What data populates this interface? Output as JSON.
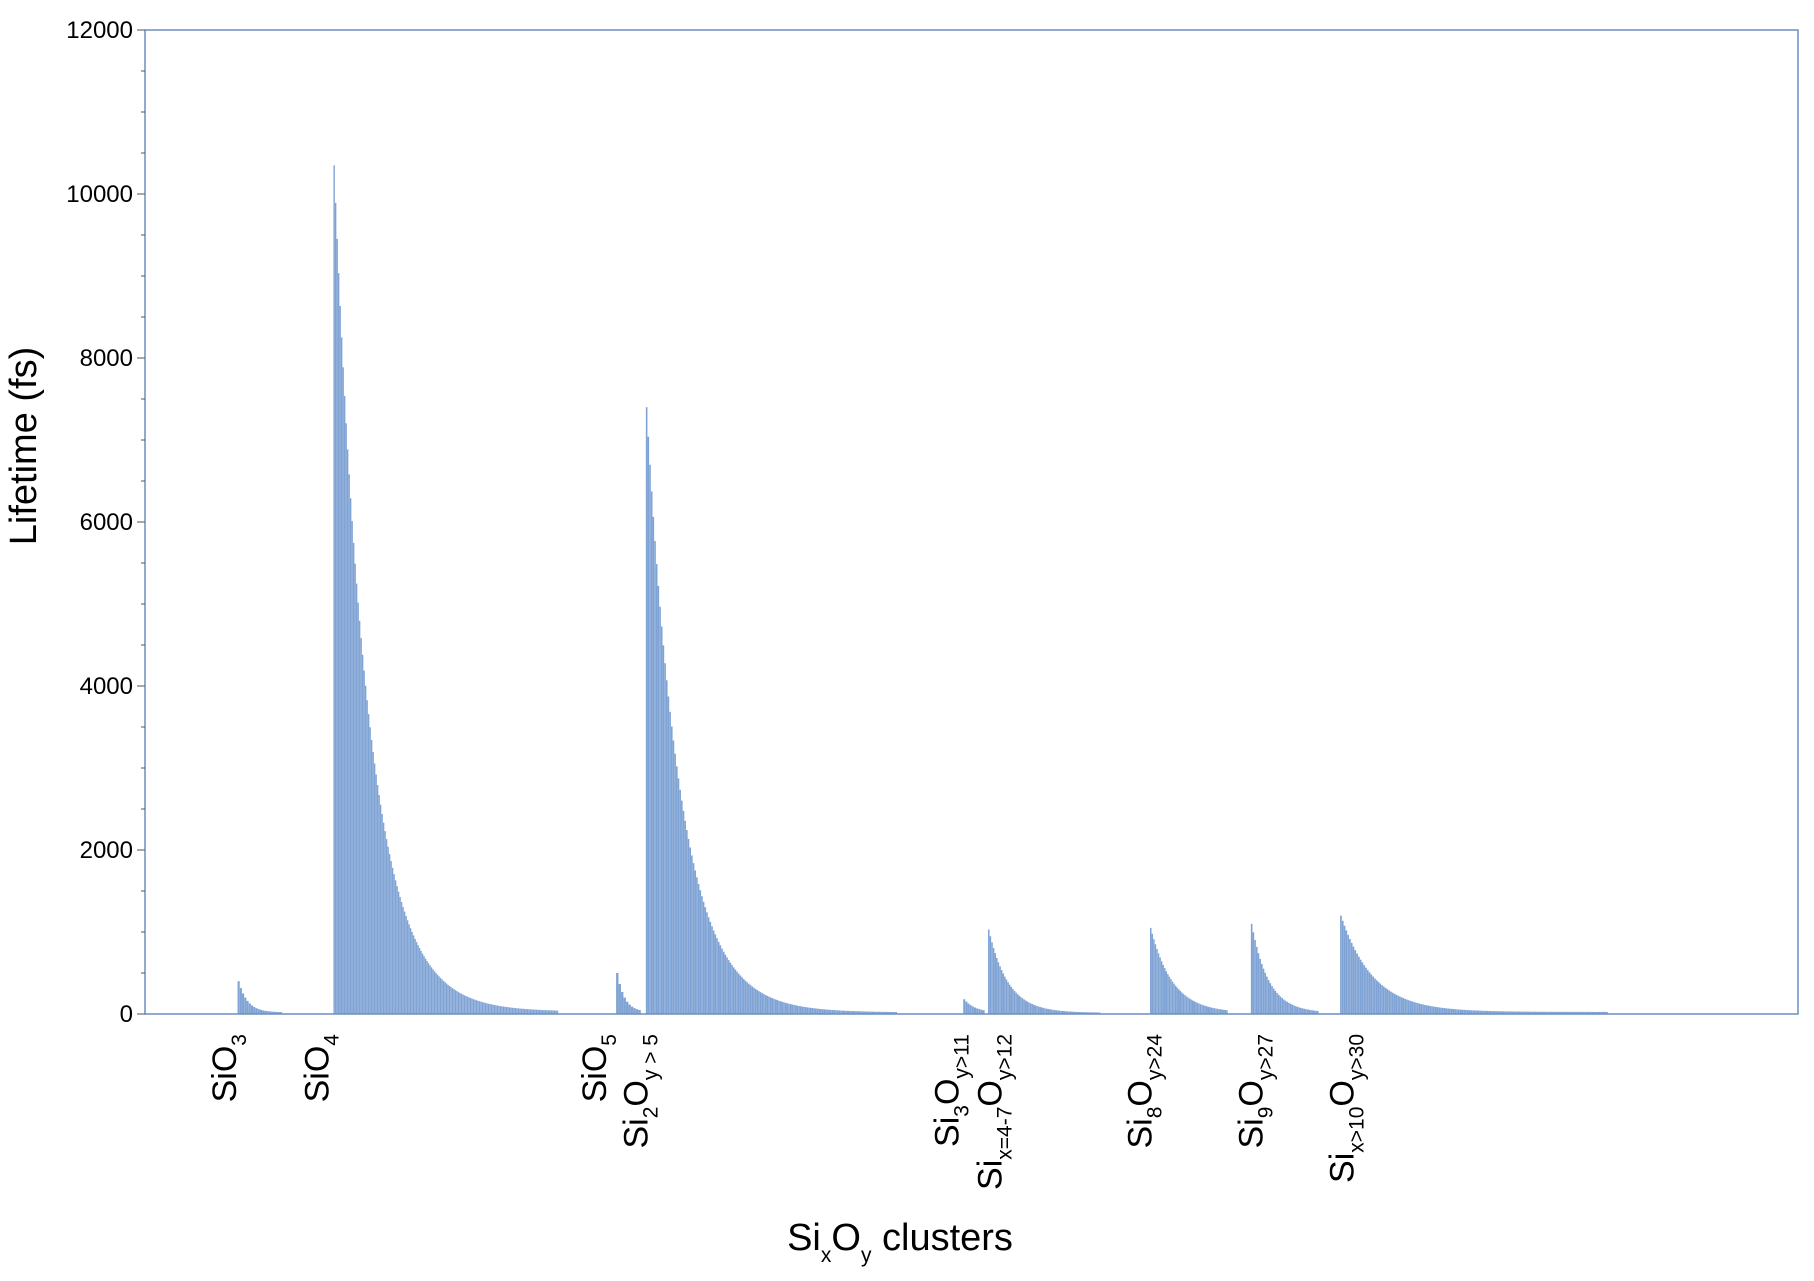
{
  "chart_data": {
    "type": "bar",
    "ylabel": "Lifetime (fs)",
    "xlabel": {
      "base1": "Si",
      "sub1": "x",
      "base2": "O",
      "sub2": "y",
      "rest": " clusters"
    },
    "ylim": [
      0,
      12000
    ],
    "yticks": [
      0,
      2000,
      4000,
      6000,
      8000,
      10000,
      12000
    ],
    "grid": false,
    "colors": {
      "bar": "#7fa3d4",
      "frame": "#6b8fbf"
    },
    "x_category_range": [
      0,
      100
    ],
    "categories": [
      {
        "parts": [
          {
            "t": "SiO"
          },
          {
            "t": "3",
            "sub": true
          }
        ],
        "x": 5.5
      },
      {
        "parts": [
          {
            "t": "SiO"
          },
          {
            "t": "4",
            "sub": true
          }
        ],
        "x": 11.1
      },
      {
        "parts": [
          {
            "t": "SiO"
          },
          {
            "t": "5",
            "sub": true
          }
        ],
        "x": 27.9
      },
      {
        "parts": [
          {
            "t": "Si"
          },
          {
            "t": "2",
            "sub": true
          },
          {
            "t": "O"
          },
          {
            "t": "y > 5",
            "sub": true
          }
        ],
        "x": 30.4
      },
      {
        "parts": [
          {
            "t": "Si"
          },
          {
            "t": "3",
            "sub": true
          },
          {
            "t": "O"
          },
          {
            "t": "y>11",
            "sub": true
          }
        ],
        "x": 49.2
      },
      {
        "parts": [
          {
            "t": "Si"
          },
          {
            "t": "x=4-7",
            "sub": true
          },
          {
            "t": "O"
          },
          {
            "t": "y>12",
            "sub": true
          }
        ],
        "x": 51.8
      },
      {
        "parts": [
          {
            "t": "Si"
          },
          {
            "t": "8",
            "sub": true
          },
          {
            "t": "O"
          },
          {
            "t": "y>24",
            "sub": true
          }
        ],
        "x": 60.9
      },
      {
        "parts": [
          {
            "t": "Si"
          },
          {
            "t": "9",
            "sub": true
          },
          {
            "t": "O"
          },
          {
            "t": "y>27",
            "sub": true
          }
        ],
        "x": 67.6
      },
      {
        "parts": [
          {
            "t": "Si"
          },
          {
            "t": "x>10",
            "sub": true
          },
          {
            "t": "O"
          },
          {
            "t": "y>30",
            "sub": true
          }
        ],
        "x": 73.1
      }
    ],
    "groups": [
      {
        "name": "SiO3",
        "start": 5.6,
        "end": 8.3,
        "bars": 20,
        "peak": 400,
        "decay": 4,
        "floor": 20
      },
      {
        "name": "SiO4",
        "start": 11.4,
        "end": 25.0,
        "bars": 150,
        "peak": 10350,
        "decay": 22,
        "floor": 30
      },
      {
        "name": "SiO5",
        "start": 28.5,
        "end": 30.0,
        "bars": 10,
        "peak": 500,
        "decay": 3,
        "floor": 25
      },
      {
        "name": "Si2Oy>5",
        "start": 30.3,
        "end": 45.5,
        "bars": 150,
        "peak": 7400,
        "decay": 20,
        "floor": 20
      },
      {
        "name": "Si3Oy>11",
        "start": 49.5,
        "end": 50.8,
        "bars": 10,
        "peak": 180,
        "decay": 5,
        "floor": 20
      },
      {
        "name": "Six=4-7Oy>12",
        "start": 51.0,
        "end": 57.8,
        "bars": 70,
        "peak": 1030,
        "decay": 12,
        "floor": 15
      },
      {
        "name": "Si8Oy>24",
        "start": 60.8,
        "end": 65.5,
        "bars": 50,
        "peak": 1050,
        "decay": 14,
        "floor": 15
      },
      {
        "name": "Si9Oy>27",
        "start": 66.9,
        "end": 71.0,
        "bars": 40,
        "peak": 1100,
        "decay": 10,
        "floor": 15
      },
      {
        "name": "Six>10Oy>30",
        "start": 72.3,
        "end": 88.5,
        "bars": 150,
        "peak": 1200,
        "decay": 18,
        "floor": 25
      }
    ]
  }
}
